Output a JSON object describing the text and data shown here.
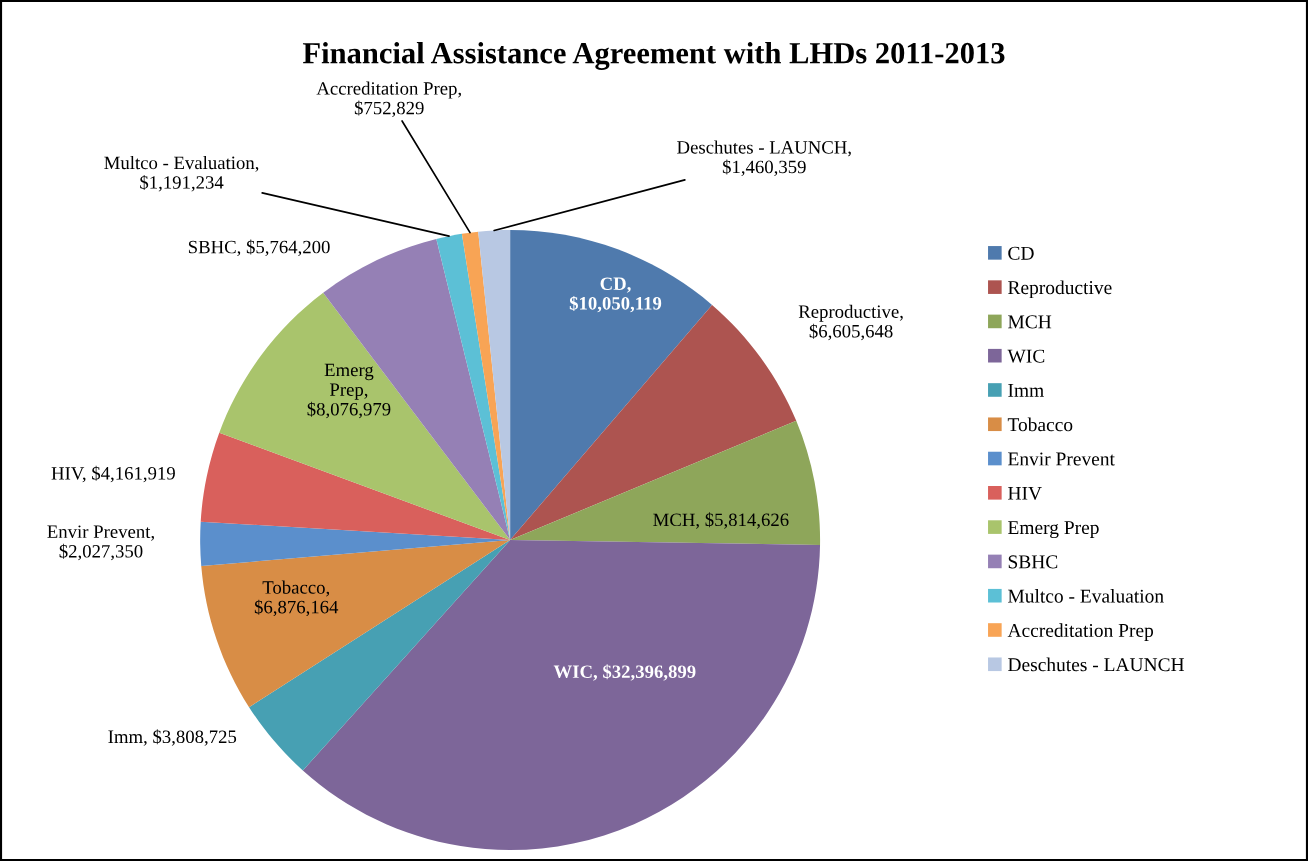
{
  "chart_data": {
    "type": "pie",
    "title": "Financial Assistance Agreement with LHDs 2011-2013",
    "categories": [
      "CD",
      "Reproductive",
      "MCH",
      "WIC",
      "Imm",
      "Tobacco",
      "Envir Prevent",
      "HIV",
      "Emerg Prep",
      "SBHC",
      "Multco - Evaluation",
      "Accreditation Prep",
      "Deschutes - LAUNCH"
    ],
    "values": [
      10050119,
      6605648,
      5814626,
      32396899,
      3808725,
      6876164,
      2027350,
      4161919,
      8076979,
      5764200,
      1191234,
      752829,
      1460359
    ],
    "value_labels": [
      "CD, $10,050,119",
      "Reproductive, $6,605,648",
      "MCH, $5,814,626",
      "WIC, $32,396,899",
      "Imm, $3,808,725",
      "Tobacco, $6,876,164",
      "Envir Prevent, $2,027,350",
      "HIV, $4,161,919",
      "Emerg Prep, $8,076,979",
      "SBHC, $5,764,200",
      "Multco - Evaluation, $1,191,234",
      "Accreditation Prep, $752,829",
      "Deschutes - LAUNCH, $1,460,359"
    ],
    "colors": [
      "#4f7aad",
      "#ad5450",
      "#8ea65a",
      "#7d6699",
      "#47a0b3",
      "#d88d46",
      "#5b8fcc",
      "#d9605c",
      "#a9c46c",
      "#9580b5",
      "#5cc0d6",
      "#f8a455",
      "#b8c8e3"
    ],
    "legend": "right"
  }
}
